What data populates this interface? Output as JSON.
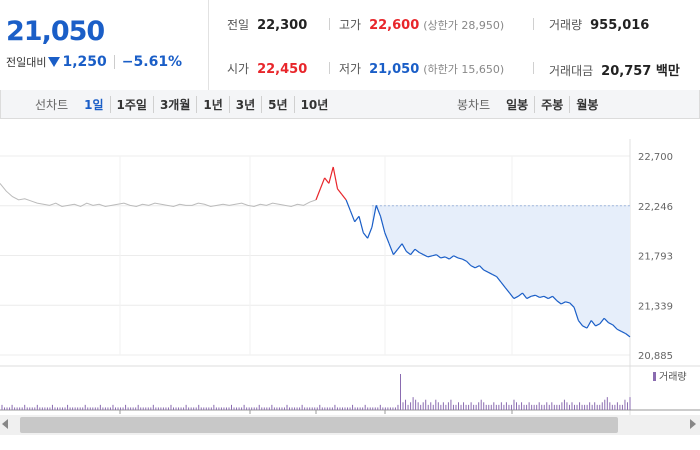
{
  "quote": {
    "current_price": "21,050",
    "change_label": "전일대비",
    "change_amount": "1,250",
    "change_percent": "−5.61%",
    "direction": "down"
  },
  "stats": {
    "prev_close": {
      "label": "전일",
      "value": "22,300"
    },
    "high": {
      "label": "고가",
      "value": "22,600",
      "sub": "(상한가 28,950)"
    },
    "volume": {
      "label": "거래량",
      "value": "955,016"
    },
    "open": {
      "label": "시가",
      "value": "22,450"
    },
    "low": {
      "label": "저가",
      "value": "21,050",
      "sub": "(하한가 15,650)"
    },
    "trade_value": {
      "label": "거래대금",
      "value": "20,757 백만"
    }
  },
  "line_chart_tabs": {
    "label": "선차트",
    "items": [
      "1일",
      "1주일",
      "3개월",
      "1년",
      "3년",
      "5년",
      "10년"
    ],
    "active": "1일"
  },
  "candle_chart_tabs": {
    "label": "봉차트",
    "items": [
      "일봉",
      "주봉",
      "월봉"
    ]
  },
  "colors": {
    "up": "#e8262b",
    "down": "#1a5ec7",
    "fill": "#e6eefa",
    "grey": "#bbbbbb",
    "volume": "#8a6bb0"
  },
  "chart_data": {
    "type": "line",
    "title": "",
    "ylim": [
      20885,
      22700
    ],
    "yticks": [
      "22,700",
      "22,246",
      "21,793",
      "21,339",
      "20,885"
    ],
    "reference_price": 22246,
    "legend": "거래량",
    "prev_day_series": [
      22450,
      22380,
      22330,
      22300,
      22310,
      22290,
      22270,
      22260,
      22250,
      22270,
      22240,
      22250,
      22260,
      22240,
      22270,
      22250,
      22260,
      22240,
      22250,
      22260,
      22270,
      22250,
      22240,
      22260,
      22250,
      22270,
      22260,
      22250,
      22240,
      22260,
      22250,
      22250,
      22270,
      22260,
      22240,
      22250,
      22260,
      22250,
      22260,
      22270,
      22250,
      22240,
      22260,
      22250,
      22270,
      22260,
      22250,
      22240,
      22260,
      22250,
      22280,
      22300
    ],
    "current_series": [
      22300,
      22400,
      22500,
      22450,
      22600,
      22400,
      22350,
      22300,
      22200,
      22100,
      22150,
      22000,
      21950,
      22050,
      22250,
      22150,
      22000,
      21900,
      21800,
      21850,
      21900,
      21830,
      21800,
      21850,
      21820,
      21800,
      21780,
      21790,
      21800,
      21770,
      21780,
      21760,
      21790,
      21770,
      21760,
      21740,
      21700,
      21680,
      21700,
      21660,
      21640,
      21620,
      21600,
      21550,
      21500,
      21450,
      21400,
      21420,
      21450,
      21400,
      21420,
      21430,
      21410,
      21420,
      21400,
      21420,
      21380,
      21350,
      21370,
      21360,
      21320,
      21200,
      21150,
      21130,
      21200,
      21150,
      21170,
      21220,
      21180,
      21160,
      21120,
      21100,
      21080,
      21050
    ],
    "volume_series": [
      2,
      1,
      1,
      1,
      2,
      1,
      1,
      1,
      1,
      2,
      1,
      1,
      1,
      1,
      2,
      1,
      1,
      1,
      1,
      1,
      2,
      1,
      1,
      1,
      1,
      1,
      2,
      1,
      1,
      1,
      1,
      1,
      1,
      2,
      1,
      1,
      1,
      1,
      1,
      2,
      1,
      1,
      1,
      1,
      2,
      1,
      1,
      1,
      1,
      2,
      1,
      1,
      1,
      1,
      2,
      1,
      1,
      1,
      1,
      1,
      2,
      1,
      1,
      1,
      1,
      1,
      1,
      2,
      1,
      1,
      1,
      1,
      1,
      2,
      1,
      1,
      1,
      1,
      2,
      1,
      1,
      1,
      1,
      1,
      2,
      1,
      1,
      1,
      1,
      1,
      1,
      2,
      1,
      1,
      1,
      1,
      2,
      1,
      1,
      1,
      1,
      1,
      2,
      1,
      1,
      1,
      1,
      2,
      1,
      1,
      1,
      1,
      1,
      2,
      1,
      1,
      1,
      1,
      1,
      2,
      1,
      1,
      1,
      1,
      1,
      1,
      2,
      1,
      1,
      1,
      1,
      1,
      2,
      1,
      1,
      1,
      1,
      1,
      1,
      2,
      1,
      1,
      1,
      1,
      2,
      1,
      1,
      1,
      1,
      1,
      2,
      1,
      1,
      1,
      1,
      1,
      1,
      2,
      14,
      3,
      4,
      2,
      3,
      5,
      4,
      3,
      2,
      3,
      4,
      2,
      3,
      2,
      4,
      3,
      2,
      3,
      2,
      3,
      4,
      2,
      2,
      3,
      2,
      3,
      2,
      2,
      3,
      2,
      2,
      3,
      4,
      3,
      2,
      2,
      2,
      3,
      2,
      2,
      3,
      2,
      3,
      2,
      2,
      4,
      3,
      2,
      3,
      2,
      2,
      3,
      2,
      2,
      2,
      3,
      2,
      2,
      3,
      2,
      3,
      2,
      2,
      2,
      3,
      4,
      3,
      2,
      3,
      2,
      2,
      3,
      2,
      2,
      2,
      3,
      2,
      3,
      2,
      2,
      3,
      4,
      5,
      3,
      2,
      2,
      3,
      2,
      2,
      4,
      3,
      5
    ]
  }
}
